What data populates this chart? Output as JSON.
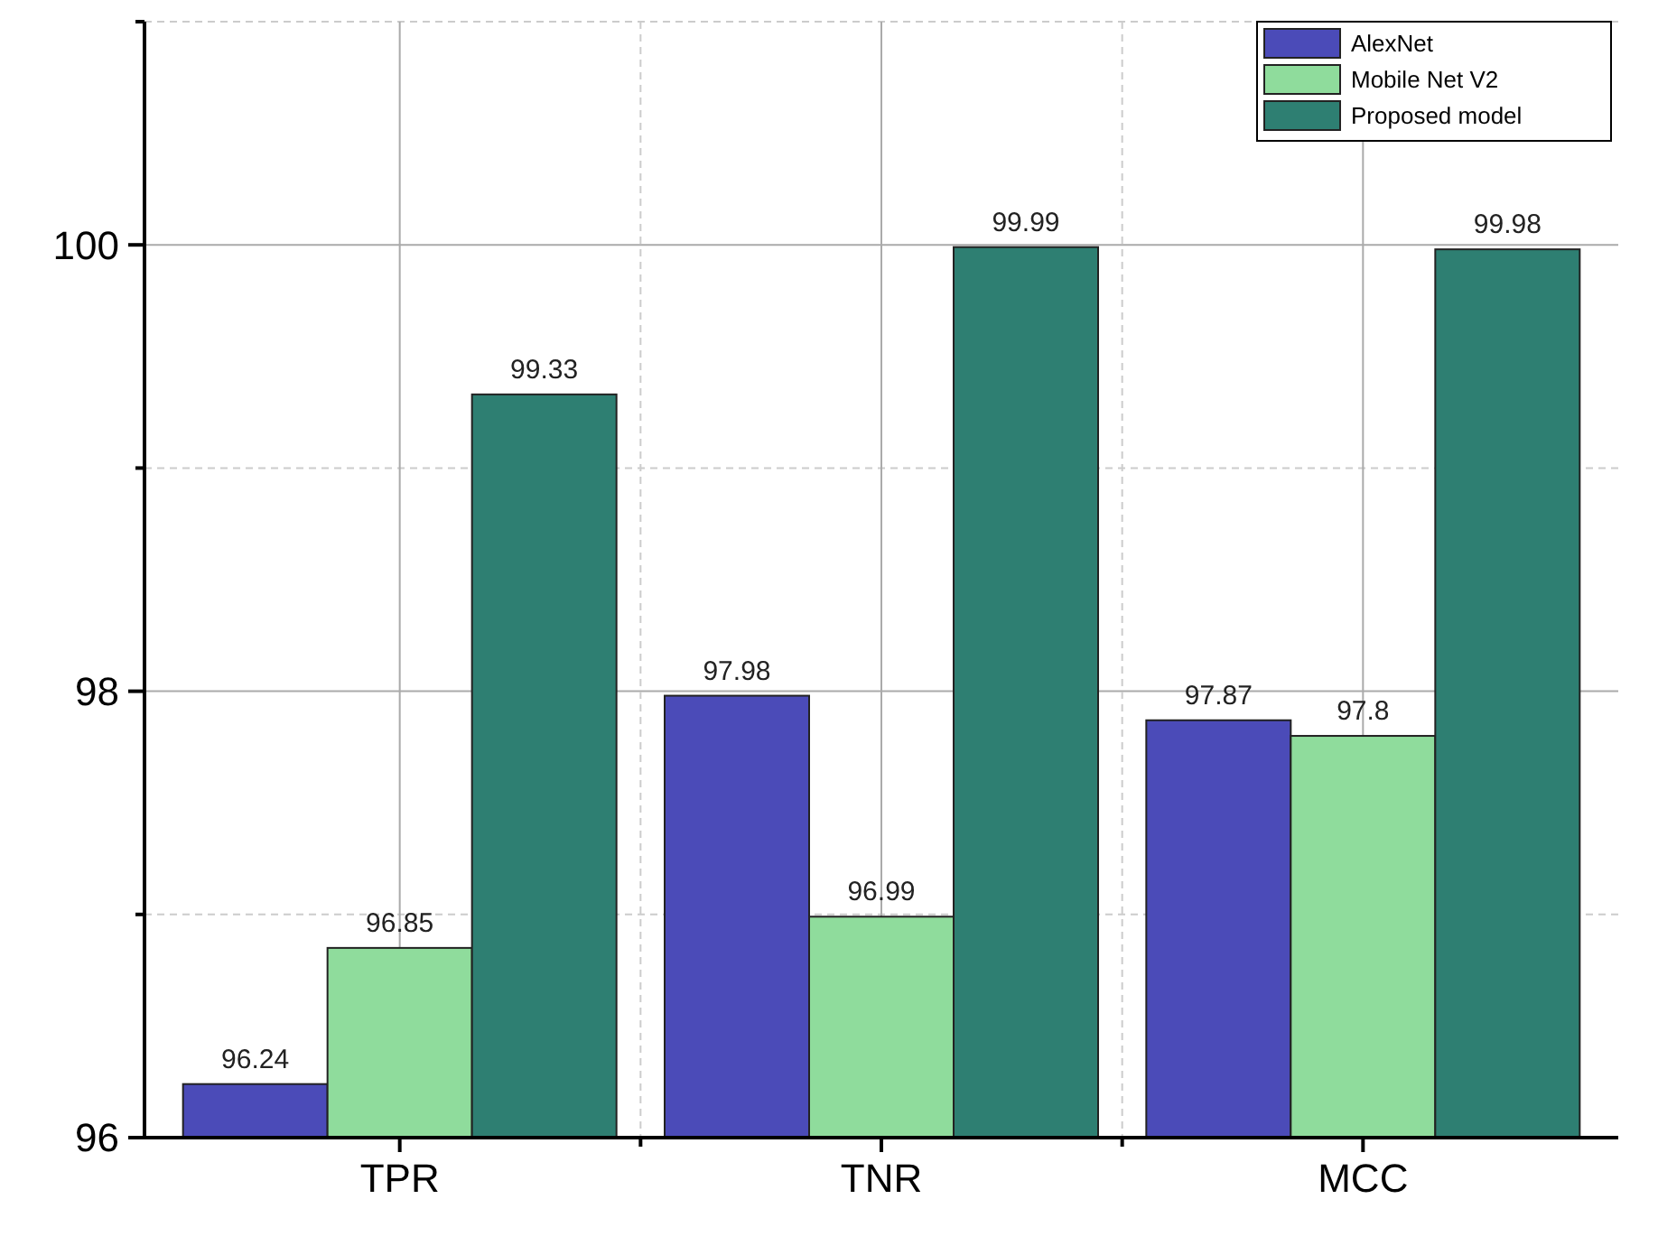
{
  "chart_data": {
    "type": "bar",
    "categories": [
      "TPR",
      "TNR",
      "MCC"
    ],
    "series": [
      {
        "name": "AlexNet",
        "color": "#4b4bb8",
        "values": [
          96.24,
          97.98,
          97.87
        ]
      },
      {
        "name": "Mobile Net V2",
        "color": "#8fdc9c",
        "values": [
          96.85,
          96.99,
          97.8
        ]
      },
      {
        "name": "Proposed model",
        "color": "#2e7f72",
        "values": [
          99.33,
          99.99,
          99.98
        ]
      }
    ],
    "ylim": [
      96,
      101
    ],
    "yticks": [
      96,
      {
        "value": 97,
        "label": null
      },
      98,
      {
        "value": 99,
        "label": null
      },
      100,
      {
        "value": 101,
        "label": null
      }
    ],
    "grid": true,
    "legend": "top right",
    "data_labels": true
  }
}
